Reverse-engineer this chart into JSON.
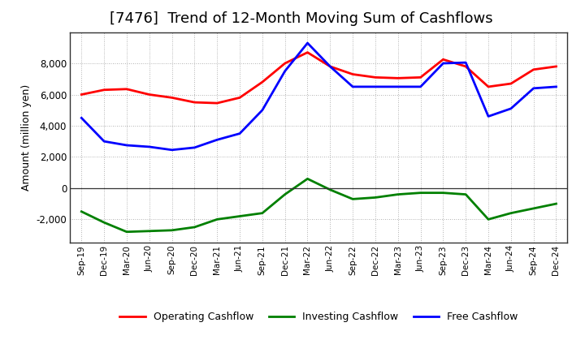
{
  "title": "[7476]  Trend of 12-Month Moving Sum of Cashflows",
  "ylabel": "Amount (million yen)",
  "xlabels": [
    "Sep-19",
    "Dec-19",
    "Mar-20",
    "Jun-20",
    "Sep-20",
    "Dec-20",
    "Mar-21",
    "Jun-21",
    "Sep-21",
    "Dec-21",
    "Mar-22",
    "Jun-22",
    "Sep-22",
    "Dec-22",
    "Mar-23",
    "Jun-23",
    "Sep-23",
    "Dec-23",
    "Mar-24",
    "Jun-24",
    "Sep-24",
    "Dec-24"
  ],
  "operating": [
    6000,
    6300,
    6350,
    6000,
    5800,
    5500,
    5450,
    5800,
    6800,
    8000,
    8700,
    7800,
    7300,
    7100,
    7050,
    7100,
    8250,
    7800,
    6500,
    6700,
    7600,
    7800
  ],
  "investing": [
    -1500,
    -2200,
    -2800,
    -2750,
    -2700,
    -2500,
    -2000,
    -1800,
    -1600,
    -400,
    600,
    -100,
    -700,
    -600,
    -400,
    -300,
    -300,
    -400,
    -2000,
    -1600,
    -1300,
    -1000
  ],
  "free": [
    4500,
    3000,
    2750,
    2650,
    2450,
    2600,
    3100,
    3500,
    5000,
    7500,
    9300,
    7800,
    6500,
    6500,
    6500,
    6500,
    8000,
    8050,
    4600,
    5100,
    6400,
    6500
  ],
  "ylim": [
    -3500,
    10000
  ],
  "yticks": [
    -2000,
    0,
    2000,
    4000,
    6000,
    8000
  ],
  "operating_color": "#ff0000",
  "investing_color": "#008000",
  "free_color": "#0000ff",
  "bg_color": "#ffffff",
  "plot_bg_color": "#ffffff",
  "grid_color": "#999999",
  "line_width": 2.0,
  "title_fontsize": 13,
  "legend_labels": [
    "Operating Cashflow",
    "Investing Cashflow",
    "Free Cashflow"
  ]
}
